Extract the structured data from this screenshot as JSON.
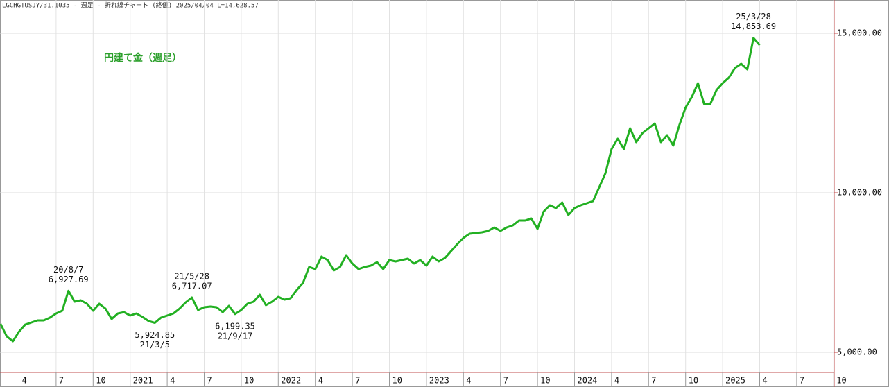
{
  "chart_data": {
    "type": "line",
    "subtitle": "LGCHGTUSJY/31.1035 - 週足 - 折れ線チャート (終値) 2025/04/04 L=14,628.57",
    "title": "円建て金（週足）",
    "categories": [
      null,
      null,
      null,
      "4",
      null,
      null,
      null,
      null,
      null,
      "7",
      null,
      null,
      null,
      null,
      null,
      "10",
      null,
      null,
      null,
      null,
      null,
      "2021",
      null,
      null,
      null,
      null,
      null,
      "4",
      null,
      null,
      null,
      null,
      null,
      "7",
      null,
      null,
      null,
      null,
      null,
      "10",
      null,
      null,
      null,
      null,
      null,
      "2022",
      null,
      null,
      null,
      null,
      null,
      "4",
      null,
      null,
      null,
      null,
      null,
      "7",
      null,
      null,
      null,
      null,
      null,
      "10",
      null,
      null,
      null,
      null,
      null,
      "2023",
      null,
      null,
      null,
      null,
      null,
      "4",
      null,
      null,
      null,
      null,
      null,
      "7",
      null,
      null,
      null,
      null,
      null,
      "10",
      null,
      null,
      null,
      null,
      null,
      "2024",
      null,
      null,
      null,
      null,
      null,
      "4",
      null,
      null,
      null,
      null,
      null,
      "7",
      null,
      null,
      null,
      null,
      null,
      "10",
      null,
      null,
      null,
      null,
      null,
      "2025",
      null,
      null,
      null,
      null,
      null,
      "4",
      null,
      null,
      null,
      null,
      null,
      "7",
      null,
      null,
      null,
      null,
      null,
      "10"
    ],
    "series": [
      {
        "color": "#22b022",
        "values": [
          5891,
          5500,
          5348,
          5650,
          5870,
          5935,
          6000,
          6000,
          6087,
          6217,
          6304,
          6927.69,
          6587,
          6630,
          6522,
          6304,
          6522,
          6370,
          6043,
          6217,
          6260,
          6152,
          6217,
          6109,
          5978,
          5924.85,
          6087,
          6152,
          6217,
          6370,
          6565,
          6717.07,
          6326,
          6413,
          6435,
          6413,
          6260,
          6456,
          6199.35,
          6326,
          6522,
          6587,
          6804,
          6478,
          6587,
          6739,
          6652,
          6696,
          6956,
          7174,
          7674,
          7609,
          8000,
          7891,
          7565,
          7674,
          8043,
          7783,
          7609,
          7674,
          7717,
          7826,
          7609,
          7891,
          7848,
          7891,
          7935,
          7783,
          7891,
          7717,
          8000,
          7848,
          7957,
          8174,
          8391,
          8587,
          8717,
          8739,
          8761,
          8804,
          8913,
          8804,
          8913,
          8978,
          9130,
          9130,
          9196,
          8869,
          9413,
          9609,
          9522,
          9696,
          9304,
          9522,
          9609,
          9674,
          9739,
          10174,
          10609,
          11370,
          11696,
          11370,
          12022,
          11587,
          11870,
          12022,
          12174,
          11587,
          11804,
          11478,
          12130,
          12674,
          13000,
          13435,
          12783,
          12783,
          13217,
          13435,
          13609,
          13913,
          14043,
          13870,
          14853.69,
          14628.57,
          null,
          null,
          null,
          null,
          null,
          null,
          null,
          null,
          null,
          null,
          null,
          null
        ]
      }
    ],
    "annotations": [
      {
        "date": "20/8/7",
        "label": "6,927.69",
        "value": 6927.69
      },
      {
        "date": "21/3/5",
        "label": "5,924.85",
        "value": 5924.85
      },
      {
        "date": "21/5/28",
        "label": "6,717.07",
        "value": 6717.07
      },
      {
        "date": "21/9/17",
        "label": "6,199.35",
        "value": 6199.35
      },
      {
        "date": "25/3/28",
        "label": "14,853.69",
        "value": 14853.69
      }
    ],
    "ylim": [
      4370,
      16043
    ],
    "yticks": [
      {
        "value": 5000,
        "label": "5,000.00"
      },
      {
        "value": 10000,
        "label": "10,000.00"
      },
      {
        "value": 15000,
        "label": "15,000.00"
      }
    ],
    "grid": true
  }
}
